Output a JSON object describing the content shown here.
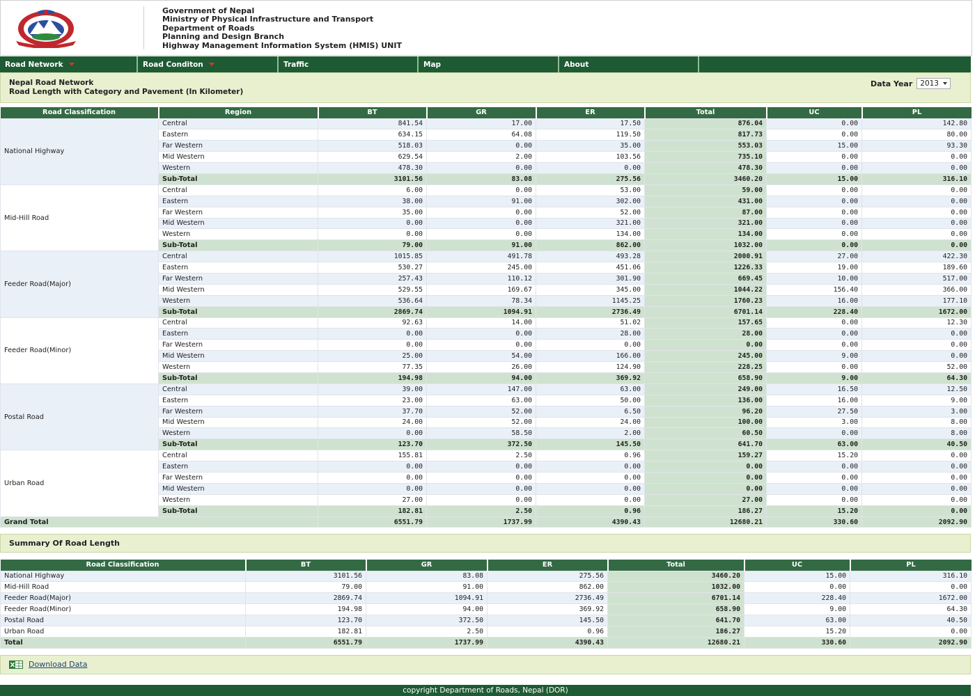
{
  "header": {
    "lines": [
      "Government of Nepal",
      "Ministry of Physical Infrastructure and Transport",
      "Department of Roads",
      "Planning and Design Branch",
      "Highway Management Information System (HMIS) UNIT"
    ]
  },
  "nav": [
    {
      "label": "Road Network",
      "dropdown": true
    },
    {
      "label": "Road Conditon",
      "dropdown": true
    },
    {
      "label": "Traffic",
      "dropdown": false
    },
    {
      "label": "Map",
      "dropdown": false
    },
    {
      "label": "About",
      "dropdown": false
    }
  ],
  "title": {
    "line1": "Nepal Road Network",
    "line2": "Road Length with Category and Pavement (In Kilometer)",
    "year_label": "Data Year",
    "year_value": "2013"
  },
  "main_table": {
    "headers": [
      "Road Classification",
      "Region",
      "BT",
      "GR",
      "ER",
      "Total",
      "UC",
      "PL"
    ],
    "groups": [
      {
        "name": "National Highway",
        "rows": [
          [
            "Central",
            "841.54",
            "17.00",
            "17.50",
            "876.04",
            "0.00",
            "142.80"
          ],
          [
            "Eastern",
            "634.15",
            "64.08",
            "119.50",
            "817.73",
            "0.00",
            "80.00"
          ],
          [
            "Far Western",
            "518.03",
            "0.00",
            "35.00",
            "553.03",
            "15.00",
            "93.30"
          ],
          [
            "Mid Western",
            "629.54",
            "2.00",
            "103.56",
            "735.10",
            "0.00",
            "0.00"
          ],
          [
            "Western",
            "478.30",
            "0.00",
            "0.00",
            "478.30",
            "0.00",
            "0.00"
          ],
          [
            "Sub-Total",
            "3101.56",
            "83.08",
            "275.56",
            "3460.20",
            "15.00",
            "316.10"
          ]
        ]
      },
      {
        "name": "Mid-Hill Road",
        "rows": [
          [
            "Central",
            "6.00",
            "0.00",
            "53.00",
            "59.00",
            "0.00",
            "0.00"
          ],
          [
            "Eastern",
            "38.00",
            "91.00",
            "302.00",
            "431.00",
            "0.00",
            "0.00"
          ],
          [
            "Far Western",
            "35.00",
            "0.00",
            "52.00",
            "87.00",
            "0.00",
            "0.00"
          ],
          [
            "Mid Western",
            "0.00",
            "0.00",
            "321.00",
            "321.00",
            "0.00",
            "0.00"
          ],
          [
            "Western",
            "0.00",
            "0.00",
            "134.00",
            "134.00",
            "0.00",
            "0.00"
          ],
          [
            "Sub-Total",
            "79.00",
            "91.00",
            "862.00",
            "1032.00",
            "0.00",
            "0.00"
          ]
        ]
      },
      {
        "name": "Feeder Road(Major)",
        "rows": [
          [
            "Central",
            "1015.85",
            "491.78",
            "493.28",
            "2000.91",
            "27.00",
            "422.30"
          ],
          [
            "Eastern",
            "530.27",
            "245.00",
            "451.06",
            "1226.33",
            "19.00",
            "189.60"
          ],
          [
            "Far Western",
            "257.43",
            "110.12",
            "301.90",
            "669.45",
            "10.00",
            "517.00"
          ],
          [
            "Mid Western",
            "529.55",
            "169.67",
            "345.00",
            "1044.22",
            "156.40",
            "366.00"
          ],
          [
            "Western",
            "536.64",
            "78.34",
            "1145.25",
            "1760.23",
            "16.00",
            "177.10"
          ],
          [
            "Sub-Total",
            "2869.74",
            "1094.91",
            "2736.49",
            "6701.14",
            "228.40",
            "1672.00"
          ]
        ]
      },
      {
        "name": "Feeder Road(Minor)",
        "rows": [
          [
            "Central",
            "92.63",
            "14.00",
            "51.02",
            "157.65",
            "0.00",
            "12.30"
          ],
          [
            "Eastern",
            "0.00",
            "0.00",
            "28.00",
            "28.00",
            "0.00",
            "0.00"
          ],
          [
            "Far Western",
            "0.00",
            "0.00",
            "0.00",
            "0.00",
            "0.00",
            "0.00"
          ],
          [
            "Mid Western",
            "25.00",
            "54.00",
            "166.00",
            "245.00",
            "9.00",
            "0.00"
          ],
          [
            "Western",
            "77.35",
            "26.00",
            "124.90",
            "228.25",
            "0.00",
            "52.00"
          ],
          [
            "Sub-Total",
            "194.98",
            "94.00",
            "369.92",
            "658.90",
            "9.00",
            "64.30"
          ]
        ]
      },
      {
        "name": "Postal Road",
        "rows": [
          [
            "Central",
            "39.00",
            "147.00",
            "63.00",
            "249.00",
            "16.50",
            "12.50"
          ],
          [
            "Eastern",
            "23.00",
            "63.00",
            "50.00",
            "136.00",
            "16.00",
            "9.00"
          ],
          [
            "Far Western",
            "37.70",
            "52.00",
            "6.50",
            "96.20",
            "27.50",
            "3.00"
          ],
          [
            "Mid Western",
            "24.00",
            "52.00",
            "24.00",
            "100.00",
            "3.00",
            "8.00"
          ],
          [
            "Western",
            "0.00",
            "58.50",
            "2.00",
            "60.50",
            "0.00",
            "8.00"
          ],
          [
            "Sub-Total",
            "123.70",
            "372.50",
            "145.50",
            "641.70",
            "63.00",
            "40.50"
          ]
        ]
      },
      {
        "name": "Urban Road",
        "rows": [
          [
            "Central",
            "155.81",
            "2.50",
            "0.96",
            "159.27",
            "15.20",
            "0.00"
          ],
          [
            "Eastern",
            "0.00",
            "0.00",
            "0.00",
            "0.00",
            "0.00",
            "0.00"
          ],
          [
            "Far Western",
            "0.00",
            "0.00",
            "0.00",
            "0.00",
            "0.00",
            "0.00"
          ],
          [
            "Mid Western",
            "0.00",
            "0.00",
            "0.00",
            "0.00",
            "0.00",
            "0.00"
          ],
          [
            "Western",
            "27.00",
            "0.00",
            "0.00",
            "27.00",
            "0.00",
            "0.00"
          ],
          [
            "Sub-Total",
            "182.81",
            "2.50",
            "0.96",
            "186.27",
            "15.20",
            "0.00"
          ]
        ]
      }
    ],
    "grand_total": [
      "Grand Total",
      "6551.79",
      "1737.99",
      "4390.43",
      "12680.21",
      "330.60",
      "2092.90"
    ]
  },
  "summary": {
    "title": "Summary Of Road Length",
    "headers": [
      "Road Classification",
      "BT",
      "GR",
      "ER",
      "Total",
      "UC",
      "PL"
    ],
    "rows": [
      [
        "National Highway",
        "3101.56",
        "83.08",
        "275.56",
        "3460.20",
        "15.00",
        "316.10"
      ],
      [
        "Mid-Hill Road",
        "79.00",
        "91.00",
        "862.00",
        "1032.00",
        "0.00",
        "0.00"
      ],
      [
        "Feeder Road(Major)",
        "2869.74",
        "1094.91",
        "2736.49",
        "6701.14",
        "228.40",
        "1672.00"
      ],
      [
        "Feeder Road(Minor)",
        "194.98",
        "94.00",
        "369.92",
        "658.90",
        "9.00",
        "64.30"
      ],
      [
        "Postal Road",
        "123.70",
        "372.50",
        "145.50",
        "641.70",
        "63.00",
        "40.50"
      ],
      [
        "Urban Road",
        "182.81",
        "2.50",
        "0.96",
        "186.27",
        "15.20",
        "0.00"
      ]
    ],
    "total": [
      "Total",
      "6551.79",
      "1737.99",
      "4390.43",
      "12680.21",
      "330.60",
      "2092.90"
    ]
  },
  "download": {
    "label": "Download Data",
    "icon": "excel-icon"
  },
  "footer": {
    "text": "copyright Department of Roads, Nepal (DOR)"
  },
  "colors": {
    "nav": "#1e5a33",
    "header_th": "#336a44",
    "panel": "#e8f0d0",
    "total_cell": "#cfe2cf",
    "emblem_red": "#c0282d",
    "emblem_blue": "#2a4fa0"
  }
}
